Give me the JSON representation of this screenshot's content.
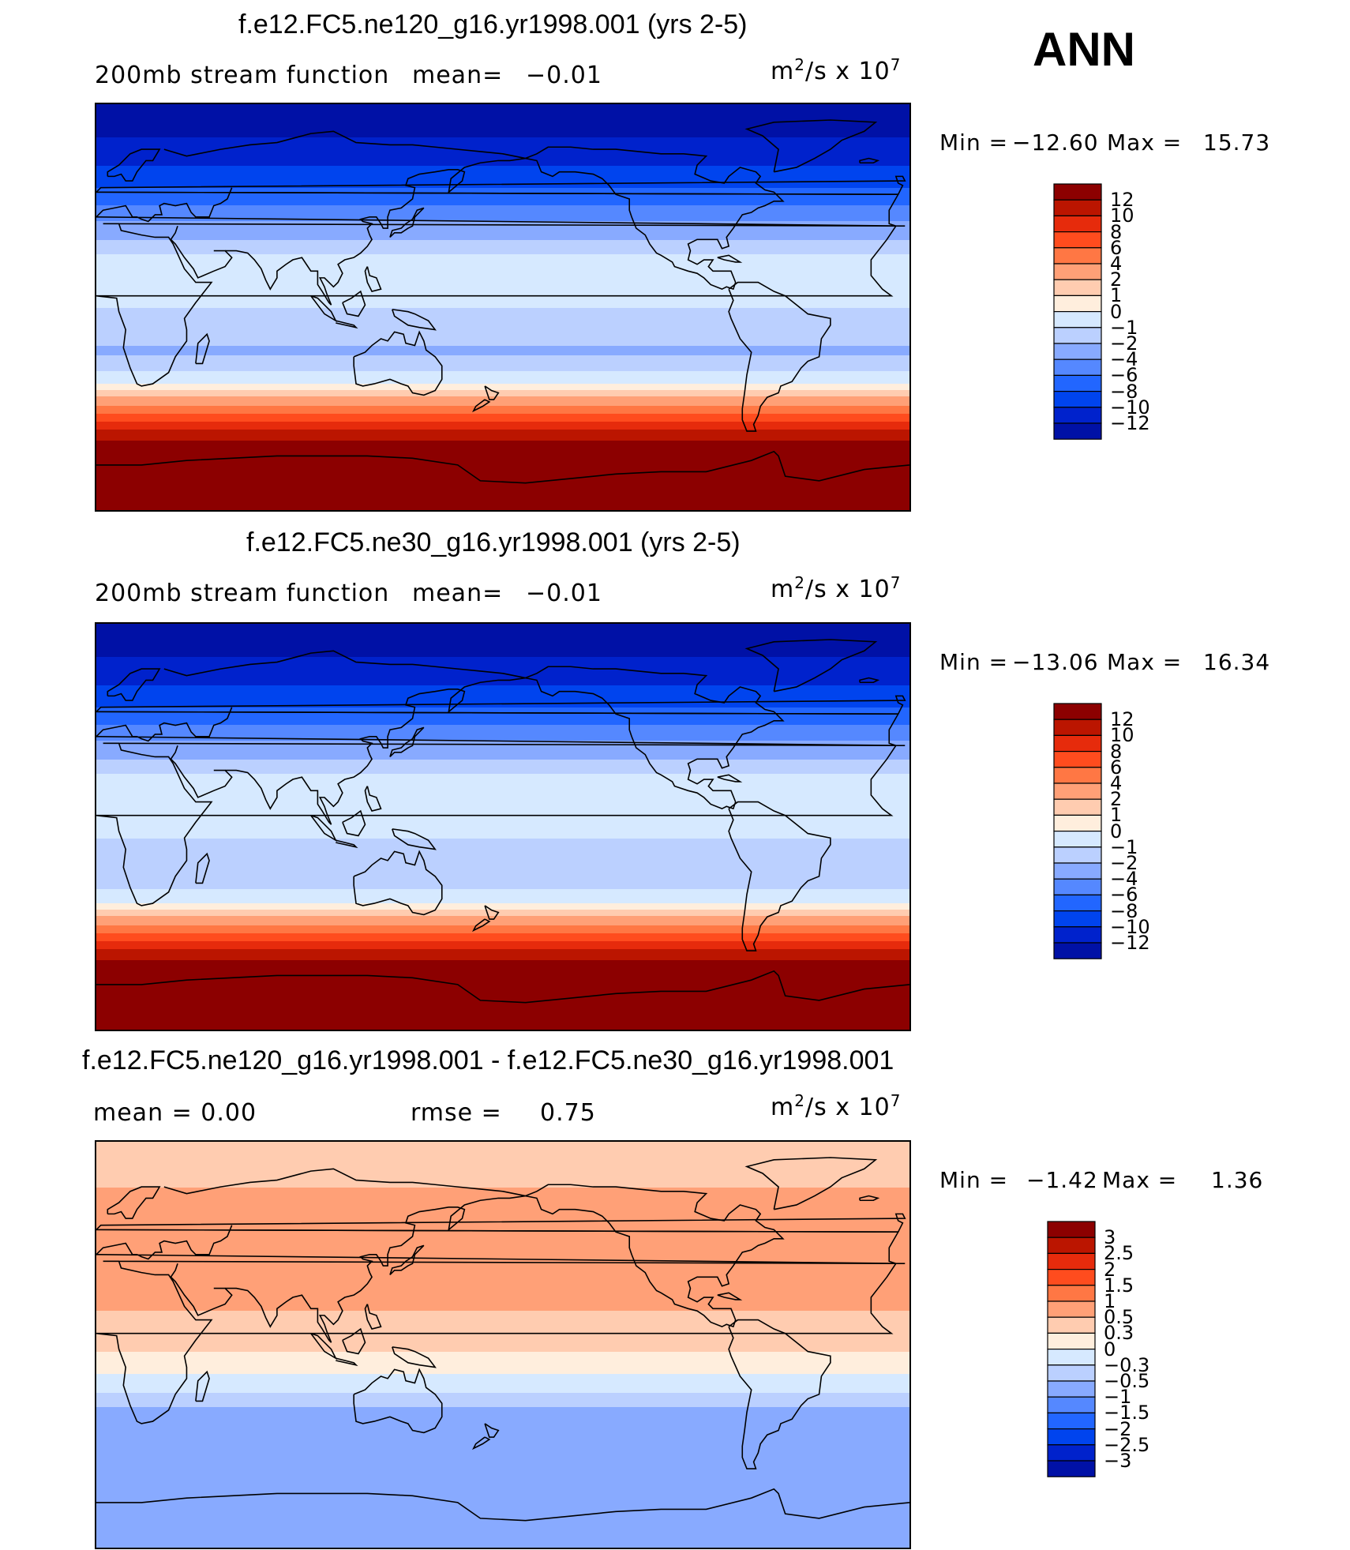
{
  "season": "ANN",
  "colors": {
    "ramp": [
      "#000080",
      "#0011a6",
      "#0022cc",
      "#0044ee",
      "#2266ff",
      "#5588ff",
      "#88aaff",
      "#bbd0ff",
      "#d6e9ff",
      "#ffeedd",
      "#ffccb0",
      "#ffa077",
      "#ff7744",
      "#ff4c1e",
      "#e62b0c",
      "#bb1500",
      "#8c0000"
    ]
  },
  "panels": [
    {
      "title": "f.e12.FC5.ne120_g16.yr1998.001 (yrs 2-5)",
      "left_text": "200mb  stream  function",
      "mid_label": "mean=",
      "mid_value": "−0.01",
      "units_base": "m",
      "units_exp": "2",
      "units_rest": "/s  x  10",
      "units_pow": "7",
      "min_label": "Min  =",
      "min_value": "−12.60",
      "max_label": "Max  =",
      "max_value": "15.73",
      "levels": [
        "12",
        "10",
        "8",
        "6",
        "4",
        "2",
        "1",
        "0",
        "−1",
        "−2",
        "−4",
        "−6",
        "−8",
        "−10",
        "−12"
      ],
      "chart_data": {
        "type": "heatmap",
        "field": "200mb stream function",
        "units": "m²/s x 10⁷",
        "mean": -0.01,
        "min": -12.6,
        "max": 15.73,
        "contour_levels": [
          -12,
          -10,
          -8,
          -6,
          -4,
          -2,
          -1,
          0,
          1,
          2,
          4,
          6,
          8,
          10,
          12
        ],
        "lat_profile": [
          [
            -90,
            15.7
          ],
          [
            -70,
            15.0
          ],
          [
            -62,
            13
          ],
          [
            -55,
            10.5
          ],
          [
            -48,
            6.5
          ],
          [
            -42,
            3
          ],
          [
            -37,
            1
          ],
          [
            -32,
            -0.5
          ],
          [
            -20,
            -2.2
          ],
          [
            -5,
            -1.2
          ],
          [
            10,
            -0.6
          ],
          [
            18,
            -0.2
          ],
          [
            25,
            -1.2
          ],
          [
            35,
            -3
          ],
          [
            45,
            -6
          ],
          [
            55,
            -8.5
          ],
          [
            65,
            -10.5
          ],
          [
            75,
            -12
          ],
          [
            90,
            -12.6
          ]
        ]
      }
    },
    {
      "title": "f.e12.FC5.ne30_g16.yr1998.001 (yrs 2-5)",
      "left_text": "200mb  stream  function",
      "mid_label": "mean=",
      "mid_value": "−0.01",
      "units_base": "m",
      "units_exp": "2",
      "units_rest": "/s  x  10",
      "units_pow": "7",
      "min_label": "Min  =",
      "min_value": "−13.06",
      "max_label": "Max  =",
      "max_value": "16.34",
      "levels": [
        "12",
        "10",
        "8",
        "6",
        "4",
        "2",
        "1",
        "0",
        "−1",
        "−2",
        "−4",
        "−6",
        "−8",
        "−10",
        "−12"
      ],
      "chart_data": {
        "type": "heatmap",
        "field": "200mb stream function",
        "units": "m²/s x 10⁷",
        "mean": -0.01,
        "min": -13.06,
        "max": 16.34,
        "contour_levels": [
          -12,
          -10,
          -8,
          -6,
          -4,
          -2,
          -1,
          0,
          1,
          2,
          4,
          6,
          8,
          10,
          12
        ],
        "lat_profile": [
          [
            -90,
            16.3
          ],
          [
            -70,
            15.2
          ],
          [
            -62,
            13
          ],
          [
            -55,
            10.5
          ],
          [
            -48,
            6.5
          ],
          [
            -42,
            3
          ],
          [
            -37,
            1
          ],
          [
            -32,
            -0.5
          ],
          [
            -20,
            -2.0
          ],
          [
            -5,
            -1.0
          ],
          [
            10,
            -0.6
          ],
          [
            18,
            -0.2
          ],
          [
            25,
            -1.2
          ],
          [
            35,
            -3
          ],
          [
            45,
            -6
          ],
          [
            55,
            -8.5
          ],
          [
            65,
            -10.5
          ],
          [
            75,
            -12
          ],
          [
            90,
            -13.0
          ]
        ]
      }
    },
    {
      "title": "f.e12.FC5.ne120_g16.yr1998.001 - f.e12.FC5.ne30_g16.yr1998.001",
      "left_text": "mean  =      0.00",
      "mid_label": "rmse  =",
      "mid_value": "0.75",
      "units_base": "m",
      "units_exp": "2",
      "units_rest": "/s  x  10",
      "units_pow": "7",
      "min_label": "Min  =",
      "min_value": "−1.42",
      "max_label": "Max  =",
      "max_value": "1.36",
      "levels": [
        "3",
        "2.5",
        "2",
        "1.5",
        "1",
        "0.5",
        "0.3",
        "0",
        "−0.3",
        "−0.5",
        "−1",
        "−1.5",
        "−2",
        "−2.5",
        "−3"
      ],
      "chart_data": {
        "type": "heatmap",
        "field": "difference",
        "units": "m²/s x 10⁷",
        "mean": 0.0,
        "rmse": 0.75,
        "min": -1.42,
        "max": 1.36,
        "contour_levels": [
          -3,
          -2.5,
          -2,
          -1.5,
          -1,
          -0.5,
          -0.3,
          0,
          0.3,
          0.5,
          1,
          1.5,
          2,
          2.5,
          3
        ],
        "lat_profile": [
          [
            -90,
            -0.6
          ],
          [
            -70,
            -0.7
          ],
          [
            -55,
            -0.9
          ],
          [
            -40,
            -0.8
          ],
          [
            -28,
            -0.5
          ],
          [
            -18,
            -0.2
          ],
          [
            -10,
            0.1
          ],
          [
            0,
            0.4
          ],
          [
            15,
            0.5
          ],
          [
            30,
            0.7
          ],
          [
            45,
            0.9
          ],
          [
            60,
            0.7
          ],
          [
            75,
            0.4
          ],
          [
            90,
            0.3
          ]
        ]
      }
    }
  ]
}
